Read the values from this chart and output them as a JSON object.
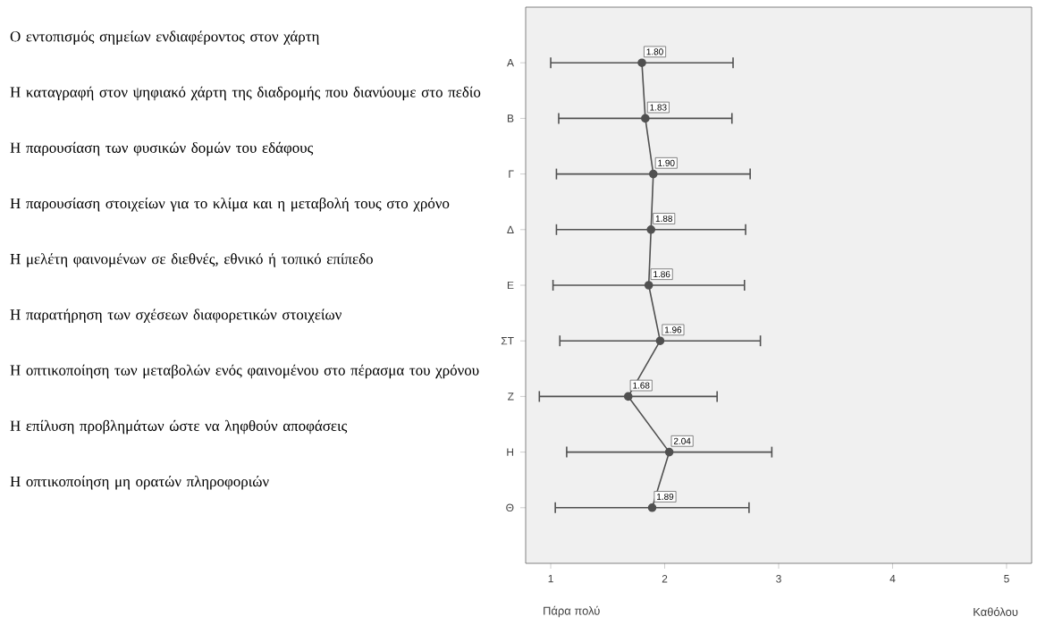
{
  "chart_data": {
    "type": "line",
    "orientation": "horizontal",
    "categories": [
      "Α",
      "Β",
      "Γ",
      "Δ",
      "Ε",
      "ΣΤ",
      "Ζ",
      "Η",
      "Θ"
    ],
    "values": [
      1.8,
      1.83,
      1.9,
      1.88,
      1.86,
      1.96,
      1.68,
      2.04,
      1.89
    ],
    "errors": [
      0.8,
      0.76,
      0.85,
      0.83,
      0.84,
      0.88,
      0.78,
      0.9,
      0.85
    ],
    "value_labels": [
      "1.80",
      "1.83",
      "1.90",
      "1.88",
      "1.86",
      "1.96",
      "1.68",
      "2.04",
      "1.89"
    ],
    "color": "#505050",
    "marker": "circle",
    "grid": false,
    "xlim": [
      0.78,
      5.22
    ],
    "xticks": [
      1,
      2,
      3,
      4,
      5
    ],
    "annotations": [
      "Ο εντοπισμός  σημείων ενδιαφέροντος στον χάρτη",
      "Η καταγραφή στον ψηφιακό χάρτη της διαδρομής που διανύουμε στο πεδίο",
      "Η παρουσίαση των φυσικών δομών του εδάφους",
      "Η παρουσίαση στοιχείων για το κλίμα και η μεταβολή τους στο χρόνο",
      "Η μελέτη φαινομένων σε διεθνές, εθνικό ή τοπικό επίπεδο",
      "Η παρατήρηση των σχέσεων διαφορετικών στοιχείων",
      "Η οπτικοποίηση των μεταβολών ενός φαινομένου στο πέρασμα του χρόνου",
      "Η επίλυση προβλημάτων ώστε να ληφθούν αποφάσεις",
      "Η οπτικοποίηση μη ορατών πληροφοριών",
      "Πάρα πολύ",
      "Καθόλου"
    ]
  }
}
